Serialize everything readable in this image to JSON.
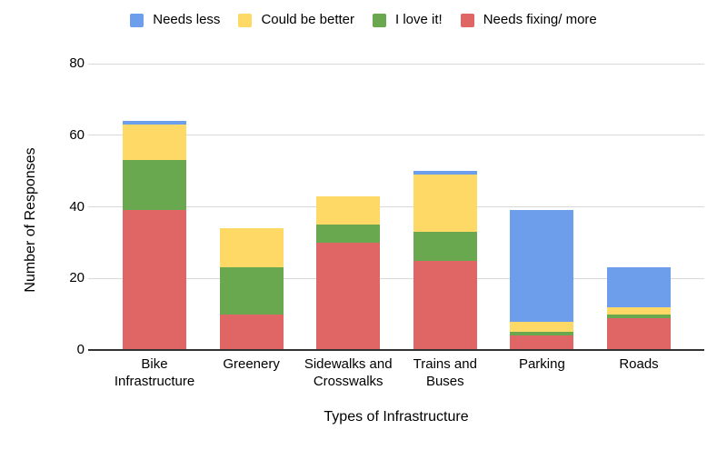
{
  "legend": {
    "items": [
      {
        "label": "Needs less",
        "color": "#6D9EEB"
      },
      {
        "label": "Could be better",
        "color": "#FFD966"
      },
      {
        "label": "I love it!",
        "color": "#6AA84F"
      },
      {
        "label": "Needs fixing/ more",
        "color": "#E06666"
      }
    ]
  },
  "chart_data": {
    "type": "bar",
    "stacked": true,
    "title": "",
    "xlabel": "Types of Infrastructure",
    "ylabel": "Number of Responses",
    "ylim": [
      0,
      80
    ],
    "yticks": [
      0,
      20,
      40,
      60,
      80
    ],
    "grid": true,
    "legend_position": "top",
    "categories": [
      "Bike Infrastructure",
      "Greenery",
      "Sidewalks and Crosswalks",
      "Trains and Buses",
      "Parking",
      "Roads"
    ],
    "category_display_lines": [
      [
        "Bike",
        "Infrastructure"
      ],
      [
        "Greenery"
      ],
      [
        "Sidewalks and",
        "Crosswalks"
      ],
      [
        "Trains and",
        "Buses"
      ],
      [
        "Parking"
      ],
      [
        "Roads"
      ]
    ],
    "series": [
      {
        "name": "Needs fixing/ more",
        "color": "#E06666",
        "values": [
          39,
          10,
          30,
          25,
          4,
          9
        ]
      },
      {
        "name": "I love it!",
        "color": "#6AA84F",
        "values": [
          14,
          13,
          5,
          8,
          1,
          1
        ]
      },
      {
        "name": "Could be better",
        "color": "#FFD966",
        "values": [
          10,
          11,
          8,
          16,
          3,
          2
        ]
      },
      {
        "name": "Needs less",
        "color": "#6D9EEB",
        "values": [
          1,
          0,
          0,
          1,
          31,
          11
        ]
      }
    ],
    "totals": [
      64,
      34,
      43,
      50,
      39,
      23
    ]
  }
}
